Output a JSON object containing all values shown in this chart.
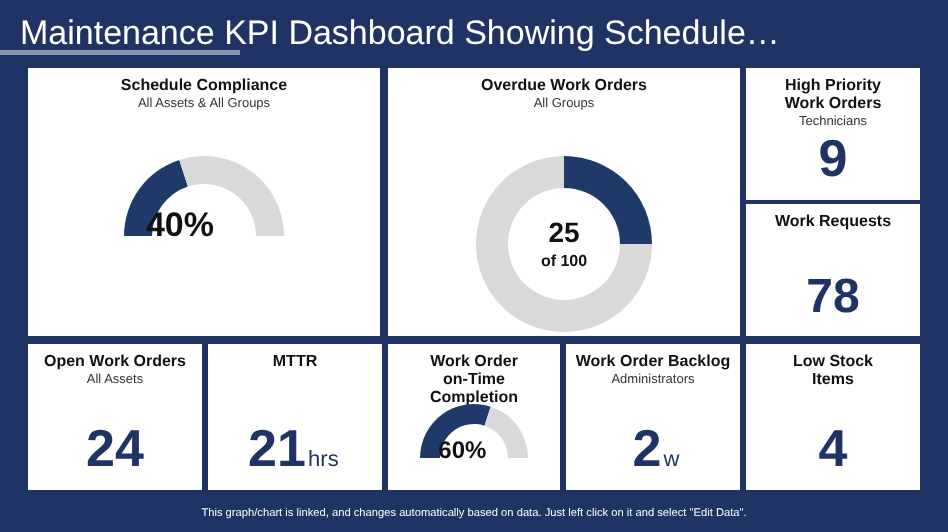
{
  "chart_data": [
    {
      "type": "other",
      "title": "Maintenance KPI Dashboard Showing Schedule…",
      "annotations": [
        "This graph/chart is linked, and changes automatically based on data. Just left click on it and select \"Edit Data\"."
      ]
    },
    {
      "type": "donut",
      "title": "Schedule Compliance",
      "subtitle": "All Assets & All Groups",
      "categories": [
        null,
        null
      ],
      "values": [
        40,
        60
      ],
      "colors": [
        "#1f3a68",
        "#d9d9d9"
      ],
      "value_labels": [
        "40%",
        null
      ]
    },
    {
      "type": "donut",
      "title": "Overdue Work Orders",
      "subtitle": "All Groups",
      "categories": [
        null,
        null
      ],
      "values": [
        25,
        75
      ],
      "colors": [
        "#1f3a68",
        "#d9d9d9"
      ],
      "value_labels": [
        "25",
        null
      ],
      "annotations": [
        "of 100"
      ]
    },
    {
      "type": "other",
      "title": "High Priority Work Orders",
      "subtitle": "Technicians",
      "annotations": [
        "9"
      ]
    },
    {
      "type": "other",
      "title": "Work Requests",
      "annotations": [
        "78"
      ]
    },
    {
      "type": "other",
      "title": "Open Work Orders",
      "subtitle": "All Assets",
      "annotations": [
        "24"
      ]
    },
    {
      "type": "other",
      "title": "MTTR",
      "annotations": [
        "21",
        "hrs"
      ]
    },
    {
      "type": "donut",
      "title": "Work Order on-Time Completion",
      "categories": [
        null,
        null
      ],
      "values": [
        60,
        40
      ],
      "colors": [
        "#1f3a68",
        "#d9d9d9"
      ],
      "value_labels": [
        "60%",
        null
      ]
    },
    {
      "type": "other",
      "title": "Work Order Backlog",
      "subtitle": "Administrators",
      "annotations": [
        "2",
        "w"
      ]
    },
    {
      "type": "other",
      "title": "Low Stock Items",
      "annotations": [
        "4"
      ]
    }
  ]
}
